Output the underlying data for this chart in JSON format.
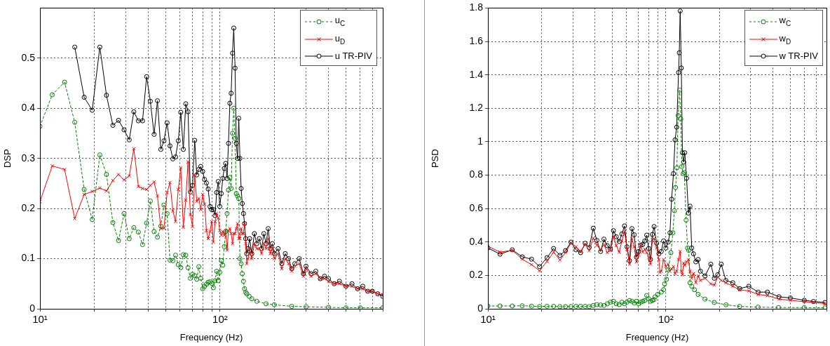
{
  "chart_data": [
    {
      "type": "line",
      "xlabel": "Frequency (Hz)",
      "ylabel": "DSP",
      "log": "x",
      "grid": true,
      "legend": "top right",
      "xlim": [
        10,
        800
      ],
      "xticks": [
        {
          "value": 10,
          "label": "10¹"
        },
        {
          "value": 20,
          "label": null
        },
        {
          "value": 30,
          "label": null
        },
        {
          "value": 40,
          "label": null
        },
        {
          "value": 50,
          "label": null
        },
        {
          "value": 60,
          "label": null
        },
        {
          "value": 70,
          "label": null
        },
        {
          "value": 80,
          "label": null
        },
        {
          "value": 90,
          "label": null
        },
        {
          "value": 100,
          "label": "10²"
        },
        {
          "value": 200,
          "label": null
        },
        {
          "value": 300,
          "label": null
        },
        {
          "value": 400,
          "label": null
        },
        {
          "value": 500,
          "label": null
        },
        {
          "value": 600,
          "label": null
        },
        {
          "value": 700,
          "label": null
        },
        {
          "value": 800,
          "label": null
        }
      ],
      "ylim": [
        0,
        0.6
      ],
      "yticks": [
        0,
        0.1,
        0.2,
        0.3,
        0.4,
        0.5
      ],
      "series": [
        {
          "name": "u$_{C}$",
          "color": "#008000",
          "marker": "circle",
          "line_style": "dashed",
          "x": [
            10,
            11.7,
            13.7,
            15.6,
            17.6,
            19.5,
            21.5,
            23.4,
            25.4,
            27.3,
            29.3,
            31.3,
            33.2,
            35.2,
            37.1,
            39.1,
            41,
            43,
            44.9,
            46.9,
            48.8,
            50.8,
            52.7,
            54.7,
            56.6,
            58.6,
            60.5,
            62.5,
            64.5,
            66.4,
            68.4,
            70.3,
            72.3,
            74.2,
            76.2,
            78.1,
            80.1,
            82,
            84,
            85.9,
            87.9,
            89.8,
            91.8,
            93.8,
            95.7,
            97.7,
            99.6,
            101.6,
            103.5,
            105.5,
            107.4,
            109.4,
            111.3,
            113.3,
            115.2,
            117.2,
            119.1,
            121.1,
            123,
            125,
            127,
            128.9,
            130.9,
            132.8,
            134.8,
            136.7,
            138.7,
            140.6,
            145,
            150,
            160,
            180,
            200,
            250,
            300,
            400,
            500,
            600,
            800
          ],
          "values": [
            0.364,
            0.427,
            0.452,
            0.372,
            0.238,
            0.178,
            0.307,
            0.268,
            0.172,
            0.136,
            0.19,
            0.14,
            0.162,
            0.153,
            0.128,
            0.171,
            0.215,
            0.154,
            0.143,
            0.165,
            0.207,
            0.19,
            0.097,
            0.096,
            0.107,
            0.088,
            0.082,
            0.108,
            0.107,
            0.082,
            0.061,
            0.069,
            0.066,
            0.059,
            0.084,
            0.061,
            0.04,
            0.045,
            0.049,
            0.053,
            0.054,
            0.051,
            0.042,
            0.056,
            0.075,
            0.056,
            0.073,
            0.096,
            0.087,
            0.124,
            0.154,
            0.19,
            0.237,
            0.262,
            0.24,
            0.35,
            0.4,
            0.34,
            0.23,
            0.225,
            0.22,
            0.1,
            0.09,
            0.07,
            0.055,
            0.04,
            0.033,
            0.03,
            0.025,
            0.02,
            0.015,
            0.01,
            0.008,
            0.005,
            0.004,
            0.003,
            0.002,
            0.002,
            0.002
          ]
        },
        {
          "name": "u$_{D}$",
          "color": "#ff0000",
          "marker": "cross",
          "line_style": "solid",
          "x": [
            10,
            11.7,
            13.7,
            15.6,
            17.6,
            19.5,
            21.5,
            23.4,
            25.4,
            27.3,
            29.3,
            31.3,
            33.2,
            35.2,
            37.1,
            39.1,
            41,
            43,
            44.9,
            46.9,
            48.8,
            50.8,
            52.7,
            54.7,
            56.6,
            58.6,
            60.5,
            62.5,
            64.5,
            66.4,
            68.4,
            70.3,
            72.3,
            74.2,
            76.2,
            78.1,
            80.1,
            82,
            84,
            85.9,
            87.9,
            89.8,
            91.8,
            93.8,
            95.7,
            97.7,
            99.6,
            101.6,
            103.5,
            105.5,
            107.4,
            109.4,
            111.3,
            113.3,
            115.2,
            117.2,
            119.1,
            121.1,
            123,
            125,
            127,
            128.9,
            130.9,
            132.8,
            134.8,
            136.7,
            138.7,
            140.6,
            143,
            146,
            150,
            155,
            160,
            165,
            170,
            175,
            180,
            185,
            190,
            195,
            200,
            210,
            220,
            230,
            240,
            250,
            260,
            275,
            290,
            300,
            320,
            340,
            360,
            380,
            400,
            430,
            460,
            500,
            540,
            580,
            620,
            660,
            700,
            750,
            800
          ],
          "values": [
            0.214,
            0.285,
            0.278,
            0.18,
            0.228,
            0.234,
            0.241,
            0.235,
            0.256,
            0.268,
            0.257,
            0.265,
            0.319,
            0.244,
            0.24,
            0.238,
            0.246,
            0.253,
            0.225,
            0.16,
            0.161,
            0.232,
            0.252,
            0.195,
            0.174,
            0.238,
            0.281,
            0.163,
            0.217,
            0.293,
            0.188,
            0.164,
            0.267,
            0.214,
            0.22,
            0.198,
            0.228,
            0.209,
            0.156,
            0.14,
            0.154,
            0.174,
            0.133,
            0.174,
            0.19,
            0.181,
            0.156,
            0.147,
            0.154,
            0.147,
            0.156,
            0.117,
            0.156,
            0.16,
            0.15,
            0.13,
            0.15,
            0.15,
            0.16,
            0.17,
            0.14,
            0.14,
            0.16,
            0.15,
            0.15,
            0.17,
            0.13,
            0.09,
            0.1,
            0.12,
            0.1,
            0.13,
            0.12,
            0.12,
            0.11,
            0.13,
            0.12,
            0.14,
            0.11,
            0.12,
            0.1,
            0.11,
            0.08,
            0.1,
            0.09,
            0.075,
            0.085,
            0.09,
            0.065,
            0.08,
            0.065,
            0.07,
            0.06,
            0.06,
            0.055,
            0.05,
            0.05,
            0.045,
            0.045,
            0.04,
            0.04,
            0.035,
            0.035,
            0.03,
            0.028
          ]
        },
        {
          "name": "u TR-PIV",
          "color": "#000000",
          "marker": "circle",
          "line_style": "solid",
          "x": [
            15.6,
            17.6,
            19.5,
            21.5,
            23.4,
            25.4,
            27.3,
            29.3,
            31.3,
            33.2,
            35.2,
            37.1,
            39.1,
            41,
            43,
            44.9,
            46.9,
            48.8,
            50.8,
            52.7,
            54.7,
            56.6,
            58.6,
            60.5,
            62.5,
            64.5,
            66.4,
            68.4,
            70.3,
            72.3,
            74.2,
            76.2,
            78.1,
            80.1,
            82,
            84,
            85.9,
            87.9,
            89.8,
            91.8,
            93.8,
            95.7,
            97.7,
            99.6,
            101.6,
            103.5,
            105.5,
            107.4,
            109.4,
            111.3,
            113.3,
            115.2,
            117.2,
            119.1,
            121.1,
            123,
            125,
            127,
            128.9,
            130.9,
            132.8,
            134.8,
            136.7,
            138.7,
            140.6,
            143,
            146,
            150,
            155,
            160,
            165,
            170,
            175,
            180,
            185,
            190,
            195,
            200,
            210,
            220,
            230,
            240,
            250,
            260,
            275,
            290,
            300,
            320,
            340,
            360,
            380,
            400,
            430,
            460,
            500,
            540,
            580,
            620,
            660,
            700,
            750,
            800
          ],
          "values": [
            0.522,
            0.422,
            0.396,
            0.522,
            0.426,
            0.366,
            0.376,
            0.357,
            0.337,
            0.393,
            0.375,
            0.375,
            0.463,
            0.414,
            0.348,
            0.415,
            0.318,
            0.335,
            0.371,
            0.325,
            0.299,
            0.303,
            0.335,
            0.392,
            0.318,
            0.409,
            0.393,
            0.233,
            0.246,
            0.336,
            0.267,
            0.278,
            0.284,
            0.274,
            0.258,
            0.251,
            0.239,
            0.204,
            0.198,
            0.198,
            0.186,
            0.232,
            0.254,
            0.204,
            0.23,
            0.26,
            0.28,
            0.29,
            0.26,
            0.33,
            0.41,
            0.43,
            0.51,
            0.56,
            0.48,
            0.33,
            0.3,
            0.38,
            0.3,
            0.24,
            0.21,
            0.19,
            0.17,
            0.14,
            0.11,
            0.12,
            0.14,
            0.11,
            0.15,
            0.13,
            0.14,
            0.12,
            0.15,
            0.13,
            0.16,
            0.12,
            0.13,
            0.11,
            0.12,
            0.09,
            0.11,
            0.1,
            0.08,
            0.09,
            0.1,
            0.07,
            0.085,
            0.07,
            0.075,
            0.06,
            0.065,
            0.06,
            0.05,
            0.055,
            0.045,
            0.05,
            0.04,
            0.045,
            0.035,
            0.035,
            0.03,
            0.025
          ]
        }
      ]
    },
    {
      "type": "line",
      "xlabel": "Frequency (Hz)",
      "ylabel": "PSD",
      "log": "x",
      "grid": true,
      "legend": "top right",
      "xlim": [
        10,
        800
      ],
      "xticks": [
        {
          "value": 10,
          "label": "10¹"
        },
        {
          "value": 20,
          "label": null
        },
        {
          "value": 30,
          "label": null
        },
        {
          "value": 40,
          "label": null
        },
        {
          "value": 50,
          "label": null
        },
        {
          "value": 60,
          "label": null
        },
        {
          "value": 70,
          "label": null
        },
        {
          "value": 80,
          "label": null
        },
        {
          "value": 90,
          "label": null
        },
        {
          "value": 100,
          "label": "10²"
        },
        {
          "value": 200,
          "label": null
        },
        {
          "value": 300,
          "label": null
        },
        {
          "value": 400,
          "label": null
        },
        {
          "value": 500,
          "label": null
        },
        {
          "value": 600,
          "label": null
        },
        {
          "value": 700,
          "label": null
        },
        {
          "value": 800,
          "label": null
        }
      ],
      "ylim": [
        0,
        1.8
      ],
      "yticks": [
        0,
        0.2,
        0.4,
        0.6,
        0.8,
        1,
        1.2,
        1.4,
        1.6,
        1.8
      ],
      "series": [
        {
          "name": "w$_{C}$",
          "color": "#008000",
          "marker": "circle",
          "line_style": "dashed",
          "x": [
            10,
            11.7,
            13.7,
            15.6,
            17.6,
            19.5,
            21.5,
            23.4,
            25.4,
            27.3,
            29.3,
            31.3,
            33.2,
            35.2,
            37.1,
            39.1,
            41,
            43,
            44.9,
            46.9,
            48.8,
            50.8,
            52.7,
            54.7,
            56.6,
            58.6,
            60.5,
            62.5,
            64.5,
            66.4,
            68.4,
            70.3,
            72.3,
            74.2,
            76.2,
            78.1,
            80.1,
            82,
            84,
            85.9,
            87,
            90,
            94.3,
            97.1,
            98.4,
            100.8,
            103.1,
            106.8,
            109.5,
            111.7,
            113.4,
            115.4,
            117.2,
            119.7,
            121.4,
            123,
            125.2,
            127,
            130,
            132.5,
            134.5,
            136.8,
            140,
            145,
            152,
            166,
            187,
            218,
            260,
            330,
            430,
            600,
            785
          ],
          "values": [
            0.017,
            0.017,
            0.017,
            0.018,
            0.016,
            0.014,
            0.015,
            0.015,
            0.013,
            0.013,
            0.014,
            0.015,
            0.015,
            0.015,
            0.013,
            0.02,
            0.025,
            0.023,
            0.02,
            0.03,
            0.04,
            0.045,
            0.03,
            0.025,
            0.04,
            0.03,
            0.04,
            0.05,
            0.045,
            0.035,
            0.045,
            0.03,
            0.04,
            0.045,
            0.05,
            0.08,
            0.06,
            0.045,
            0.05,
            0.055,
            0.072,
            0.086,
            0.1,
            0.114,
            0.149,
            0.177,
            0.232,
            0.336,
            0.455,
            0.587,
            0.726,
            0.844,
            1.157,
            1.309,
            1.136,
            0.851,
            0.809,
            0.816,
            0.531,
            0.364,
            0.35,
            0.156,
            0.135,
            0.114,
            0.086,
            0.058,
            0.038,
            0.024,
            0.014,
            0.01,
            0.008,
            0.007,
            0.006
          ]
        },
        {
          "name": "w$_{D}$",
          "color": "#ff0000",
          "marker": "cross",
          "line_style": "solid",
          "x": [
            10,
            11.7,
            13.7,
            15.6,
            17.6,
            19.5,
            21.5,
            23.4,
            25.4,
            27.3,
            29.3,
            31.3,
            33.2,
            35.2,
            37.1,
            39.1,
            41,
            43,
            44.9,
            46.9,
            48.8,
            50.8,
            52.7,
            54.7,
            56.6,
            58.6,
            60.5,
            62.5,
            64.5,
            66.4,
            68.4,
            70.3,
            72.3,
            74.2,
            76.2,
            78.1,
            80.1,
            82,
            84,
            85.9,
            88.8,
            91.4,
            92.7,
            94.3,
            97.1,
            100,
            103.1,
            105.5,
            107.8,
            110.4,
            112.7,
            115.1,
            117.9,
            120.4,
            122.2,
            124,
            125.9,
            127.8,
            130.8,
            134,
            136.8,
            139.8,
            143.1,
            147.5,
            151.9,
            156.5,
            166.2,
            179,
            187.3,
            195.8,
            204.8,
            217.5,
            237.8,
            260.1,
            293,
            330.4,
            372.4,
            432.5,
            501.2,
            600,
            676,
            785
          ],
          "values": [
            0.375,
            0.339,
            0.35,
            0.297,
            0.264,
            0.228,
            0.284,
            0.339,
            0.292,
            0.336,
            0.395,
            0.371,
            0.343,
            0.385,
            0.348,
            0.423,
            0.381,
            0.353,
            0.385,
            0.336,
            0.35,
            0.434,
            0.378,
            0.339,
            0.406,
            0.461,
            0.357,
            0.267,
            0.42,
            0.371,
            0.281,
            0.322,
            0.378,
            0.339,
            0.357,
            0.336,
            0.309,
            0.267,
            0.413,
            0.42,
            0.364,
            0.295,
            0.218,
            0.225,
            0.295,
            0.253,
            0.267,
            0.225,
            0.239,
            0.253,
            0.211,
            0.225,
            0.295,
            0.343,
            0.225,
            0.204,
            0.274,
            0.26,
            0.281,
            0.295,
            0.225,
            0.183,
            0.211,
            0.156,
            0.197,
            0.17,
            0.183,
            0.149,
            0.142,
            0.19,
            0.17,
            0.156,
            0.135,
            0.114,
            0.107,
            0.086,
            0.079,
            0.058,
            0.051,
            0.042,
            0.038,
            0.031
          ]
        },
        {
          "name": "w TR-PIV",
          "color": "#000000",
          "marker": "circle",
          "line_style": "solid",
          "x": [
            10,
            11.7,
            13.7,
            15.6,
            17.6,
            19.5,
            21.5,
            23.4,
            25.4,
            27.3,
            29.3,
            31.3,
            33.2,
            35.2,
            37.1,
            39.1,
            41,
            43,
            44.9,
            46.9,
            48.8,
            50.8,
            52.7,
            54.7,
            56.6,
            58.6,
            60.5,
            62.5,
            64.5,
            66.4,
            68.4,
            70.3,
            72.3,
            74.2,
            76.2,
            78.1,
            80.1,
            82,
            84,
            85.9,
            88.8,
            91.4,
            94.3,
            97.1,
            100,
            103.1,
            105.5,
            107.8,
            110.4,
            112.7,
            115.1,
            117.9,
            119,
            120.4,
            122.2,
            124,
            125.9,
            127.8,
            130.8,
            134,
            136.8,
            139.8,
            143.1,
            147.5,
            151.9,
            156.5,
            166.2,
            179,
            187.3,
            195.8,
            204.8,
            217.5,
            237.8,
            260.1,
            293,
            330.4,
            372.4,
            432.5,
            501.2,
            600,
            676,
            785
          ],
          "values": [
            0.364,
            0.327,
            0.353,
            0.311,
            0.297,
            0.253,
            0.306,
            0.361,
            0.32,
            0.348,
            0.399,
            0.353,
            0.336,
            0.392,
            0.367,
            0.482,
            0.409,
            0.343,
            0.417,
            0.378,
            0.357,
            0.468,
            0.431,
            0.403,
            0.448,
            0.496,
            0.371,
            0.288,
            0.48,
            0.443,
            0.309,
            0.343,
            0.381,
            0.385,
            0.406,
            0.441,
            0.361,
            0.295,
            0.445,
            0.492,
            0.392,
            0.329,
            0.343,
            0.406,
            0.364,
            0.399,
            0.455,
            0.656,
            0.809,
            1.011,
            1.087,
            1.414,
            1.532,
            1.782,
            1.441,
            0.934,
            0.878,
            0.934,
            0.781,
            0.573,
            0.614,
            0.364,
            0.329,
            0.281,
            0.295,
            0.225,
            0.197,
            0.267,
            0.183,
            0.204,
            0.267,
            0.17,
            0.156,
            0.121,
            0.135,
            0.1,
            0.1,
            0.072,
            0.065,
            0.051,
            0.044,
            0.038
          ]
        }
      ]
    }
  ]
}
